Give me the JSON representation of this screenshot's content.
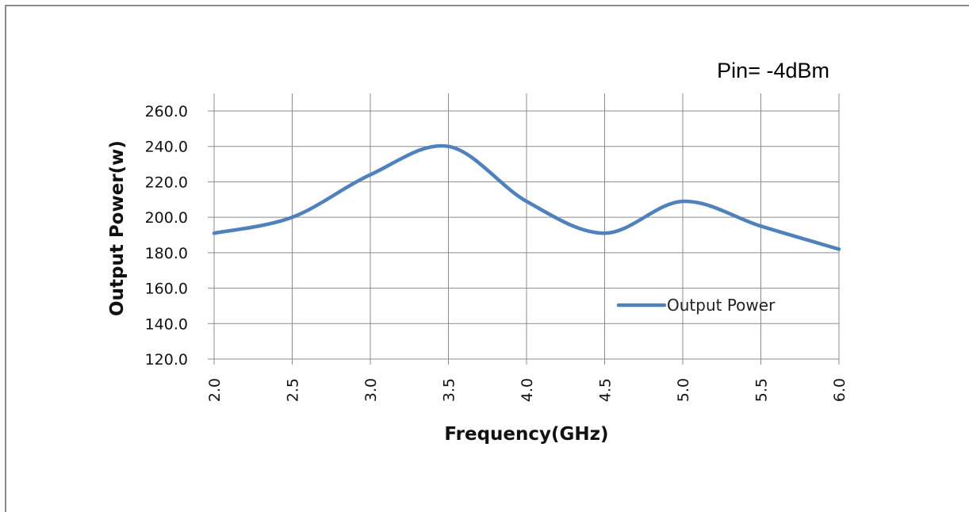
{
  "chart_data": {
    "type": "line",
    "annotation": "Pin=  -4dBm",
    "xlabel": "Frequency(GHz)",
    "ylabel": "Output Power(w)",
    "x_tick_labels": [
      "2.0",
      "2.5",
      "3.0",
      "3.5",
      "4.0",
      "4.5",
      "5.0",
      "5.5",
      "6.0"
    ],
    "y_tick_labels": [
      "120.0",
      "140.0",
      "160.0",
      "180.0",
      "200.0",
      "220.0",
      "240.0",
      "260.0"
    ],
    "xlim": [
      2.0,
      6.0
    ],
    "ylim": [
      120,
      260
    ],
    "grid": true,
    "legend_placement": "inside-lower-right",
    "series": [
      {
        "name": "Output Power",
        "color": "#4f81bd",
        "x": [
          2.0,
          2.5,
          3.0,
          3.5,
          4.0,
          4.5,
          5.0,
          5.5,
          6.0
        ],
        "y": [
          191,
          200,
          224,
          240,
          209,
          191,
          209,
          195,
          182
        ]
      }
    ]
  }
}
